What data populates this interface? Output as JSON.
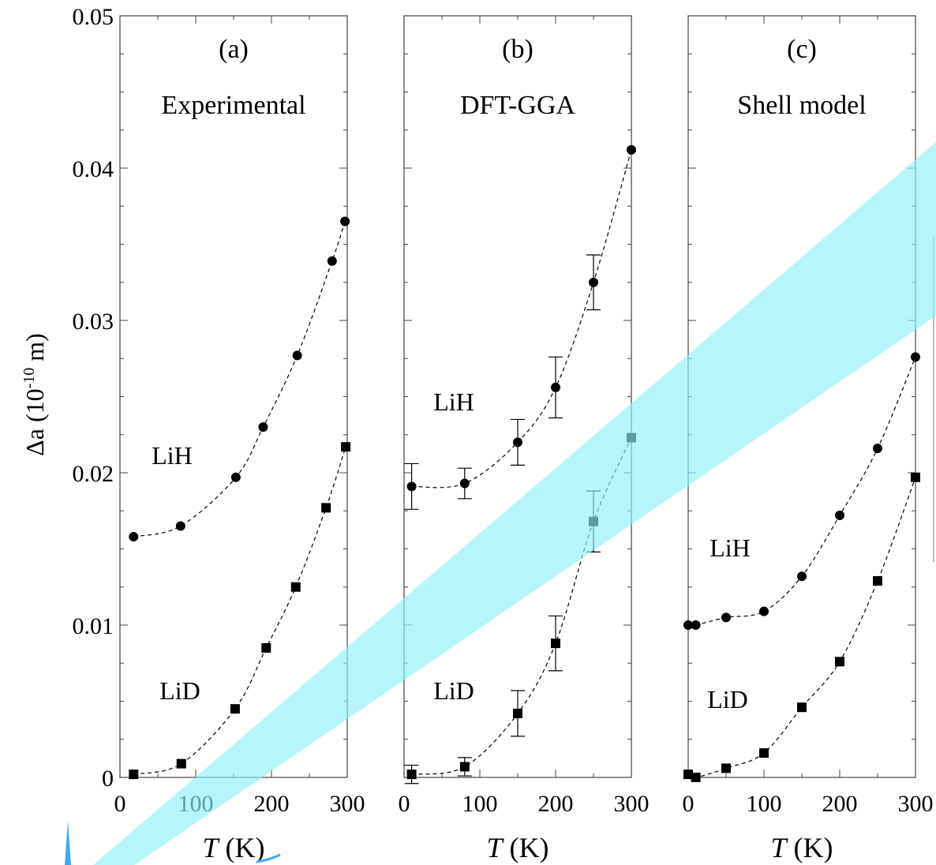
{
  "chart_data": [
    {
      "type": "scatter",
      "title": "(a)",
      "subtitle": "Experimental",
      "xlabel": [
        "T",
        "(K)"
      ],
      "ylabel": [
        "Δa (10",
        "-10",
        "m)"
      ],
      "xlim": [
        0,
        300
      ],
      "xticks": [
        0,
        100,
        200,
        300
      ],
      "ylim": [
        0,
        0.05
      ],
      "yticks": [
        0,
        0.01,
        0.02,
        0.03,
        0.04,
        0.05
      ],
      "show_ytick_labels": true,
      "series": [
        {
          "name": "LiH",
          "marker": "circle",
          "color": "#000000",
          "x": [
            18,
            80,
            153,
            189,
            234,
            280,
            297
          ],
          "values": [
            0.0158,
            0.0165,
            0.0197,
            0.023,
            0.0277,
            0.0339,
            0.0365
          ]
        },
        {
          "name": "LiD",
          "marker": "square",
          "color": "#000000",
          "x": [
            18,
            81,
            152,
            193,
            232,
            272,
            298
          ],
          "values": [
            0.0002,
            0.0009,
            0.0045,
            0.0085,
            0.0125,
            0.0177,
            0.0217
          ]
        }
      ]
    },
    {
      "type": "scatter",
      "title": "(b)",
      "subtitle": "DFT-GGA",
      "xlabel": [
        "T",
        "(K)"
      ],
      "xlim": [
        0,
        300
      ],
      "xticks": [
        0,
        100,
        200,
        300
      ],
      "ylim": [
        0,
        0.05
      ],
      "yticks": [
        0,
        0.01,
        0.02,
        0.03,
        0.04,
        0.05
      ],
      "show_ytick_labels": false,
      "series": [
        {
          "name": "LiH",
          "marker": "circle",
          "color": "#000000",
          "x": [
            10,
            80,
            150,
            200,
            250,
            300
          ],
          "values": [
            0.0191,
            0.0193,
            0.022,
            0.0256,
            0.0325,
            0.0412
          ],
          "errors": [
            0.0015,
            0.001,
            0.0015,
            0.002,
            0.0018,
            null
          ]
        },
        {
          "name": "LiD",
          "marker": "square",
          "color": "#000000",
          "x": [
            10,
            80,
            150,
            200,
            250,
            300
          ],
          "values": [
            0.0002,
            0.0007,
            0.0042,
            0.0088,
            0.0168,
            0.0223
          ],
          "errors": [
            0.0006,
            0.0006,
            0.0015,
            0.0018,
            0.002,
            null
          ]
        }
      ]
    },
    {
      "type": "scatter",
      "title": "(c)",
      "subtitle": "Shell model",
      "xlabel": [
        "T",
        "(K)"
      ],
      "xlim": [
        0,
        300
      ],
      "xticks": [
        0,
        100,
        200,
        300
      ],
      "ylim": [
        0,
        0.05
      ],
      "yticks": [
        0,
        0.01,
        0.02,
        0.03,
        0.04,
        0.05
      ],
      "show_ytick_labels": false,
      "series": [
        {
          "name": "LiH",
          "marker": "circle",
          "color": "#000000",
          "x": [
            0,
            10,
            50,
            100,
            150,
            200,
            250,
            300
          ],
          "values": [
            0.01,
            0.01,
            0.0105,
            0.0109,
            0.0132,
            0.0172,
            0.0216,
            0.0276
          ]
        },
        {
          "name": "LiD",
          "marker": "square",
          "color": "#000000",
          "x": [
            0,
            10,
            50,
            100,
            150,
            200,
            250,
            300
          ],
          "values": [
            0.0002,
            0,
            0.0006,
            0.0016,
            0.0046,
            0.0076,
            0.0129,
            0.0197
          ]
        }
      ]
    }
  ]
}
